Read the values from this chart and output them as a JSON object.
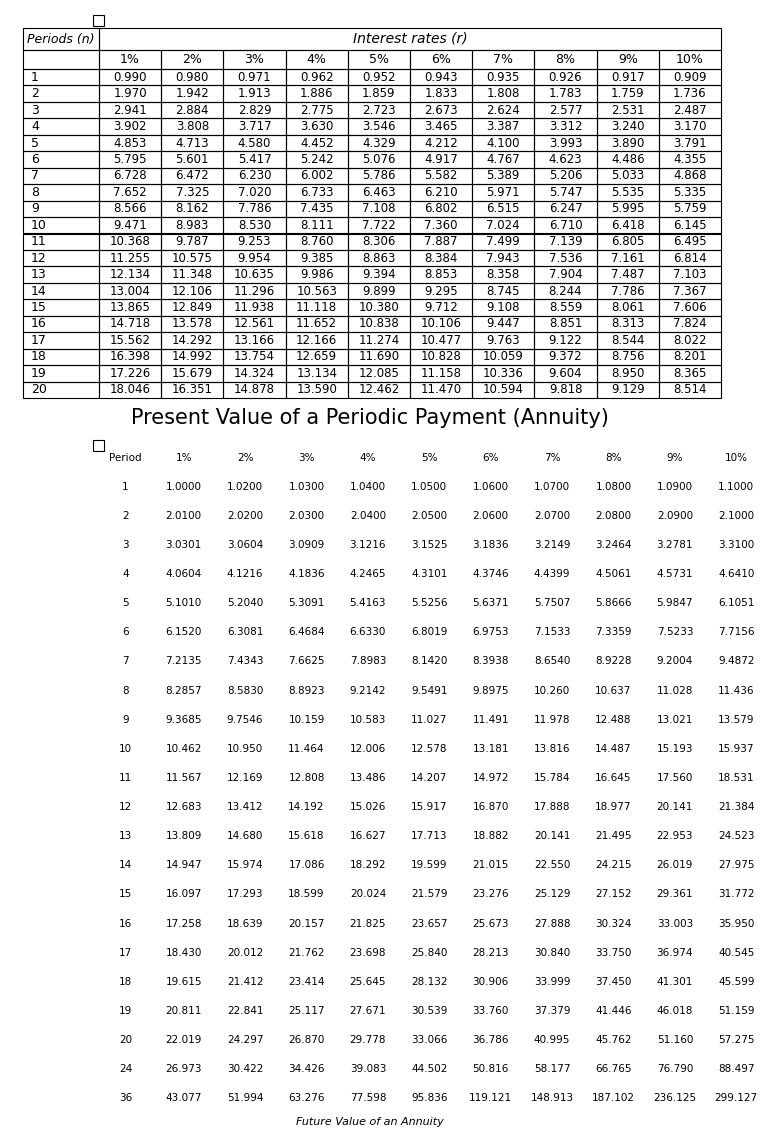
{
  "table1_title_col": "Periods (n)",
  "table1_title_rate": "Interest rates (r)",
  "table1_rates": [
    "1%",
    "2%",
    "3%",
    "4%",
    "5%",
    "6%",
    "7%",
    "8%",
    "9%",
    "10%"
  ],
  "table1_periods": [
    1,
    2,
    3,
    4,
    5,
    6,
    7,
    8,
    9,
    10,
    11,
    12,
    13,
    14,
    15,
    16,
    17,
    18,
    19,
    20
  ],
  "table1_data": [
    [
      0.99,
      0.98,
      0.971,
      0.962,
      0.952,
      0.943,
      0.935,
      0.926,
      0.917,
      0.909
    ],
    [
      1.97,
      1.942,
      1.913,
      1.886,
      1.859,
      1.833,
      1.808,
      1.783,
      1.759,
      1.736
    ],
    [
      2.941,
      2.884,
      2.829,
      2.775,
      2.723,
      2.673,
      2.624,
      2.577,
      2.531,
      2.487
    ],
    [
      3.902,
      3.808,
      3.717,
      3.63,
      3.546,
      3.465,
      3.387,
      3.312,
      3.24,
      3.17
    ],
    [
      4.853,
      4.713,
      4.58,
      4.452,
      4.329,
      4.212,
      4.1,
      3.993,
      3.89,
      3.791
    ],
    [
      5.795,
      5.601,
      5.417,
      5.242,
      5.076,
      4.917,
      4.767,
      4.623,
      4.486,
      4.355
    ],
    [
      6.728,
      6.472,
      6.23,
      6.002,
      5.786,
      5.582,
      5.389,
      5.206,
      5.033,
      4.868
    ],
    [
      7.652,
      7.325,
      7.02,
      6.733,
      6.463,
      6.21,
      5.971,
      5.747,
      5.535,
      5.335
    ],
    [
      8.566,
      8.162,
      7.786,
      7.435,
      7.108,
      6.802,
      6.515,
      6.247,
      5.995,
      5.759
    ],
    [
      9.471,
      8.983,
      8.53,
      8.111,
      7.722,
      7.36,
      7.024,
      6.71,
      6.418,
      6.145
    ],
    [
      10.368,
      9.787,
      9.253,
      8.76,
      8.306,
      7.887,
      7.499,
      7.139,
      6.805,
      6.495
    ],
    [
      11.255,
      10.575,
      9.954,
      9.385,
      8.863,
      8.384,
      7.943,
      7.536,
      7.161,
      6.814
    ],
    [
      12.134,
      11.348,
      10.635,
      9.986,
      9.394,
      8.853,
      8.358,
      7.904,
      7.487,
      7.103
    ],
    [
      13.004,
      12.106,
      11.296,
      10.563,
      9.899,
      9.295,
      8.745,
      8.244,
      7.786,
      7.367
    ],
    [
      13.865,
      12.849,
      11.938,
      11.118,
      10.38,
      9.712,
      9.108,
      8.559,
      8.061,
      7.606
    ],
    [
      14.718,
      13.578,
      12.561,
      11.652,
      10.838,
      10.106,
      9.447,
      8.851,
      8.313,
      7.824
    ],
    [
      15.562,
      14.292,
      13.166,
      12.166,
      11.274,
      10.477,
      9.763,
      9.122,
      8.544,
      8.022
    ],
    [
      16.398,
      14.992,
      13.754,
      12.659,
      11.69,
      10.828,
      10.059,
      9.372,
      8.756,
      8.201
    ],
    [
      17.226,
      15.679,
      14.324,
      13.134,
      12.085,
      11.158,
      10.336,
      9.604,
      8.95,
      8.365
    ],
    [
      18.046,
      16.351,
      14.878,
      13.59,
      12.462,
      11.47,
      10.594,
      9.818,
      9.129,
      8.514
    ]
  ],
  "table2_title": "Present Value of a Periodic Payment (Annuity)",
  "table2_rates": [
    "1%",
    "2%",
    "3%",
    "4%",
    "5%",
    "6%",
    "7%",
    "8%",
    "9%",
    "10%"
  ],
  "table2_periods": [
    1,
    2,
    3,
    4,
    5,
    6,
    7,
    8,
    9,
    10,
    11,
    12,
    13,
    14,
    15,
    16,
    17,
    18,
    19,
    20,
    24,
    36
  ],
  "table2_data": [
    [
      1.0,
      1.02,
      1.03,
      1.04,
      1.05,
      1.06,
      1.07,
      1.08,
      1.09,
      1.1
    ],
    [
      2.01,
      2.02,
      2.03,
      2.04,
      2.05,
      2.06,
      2.07,
      2.08,
      2.09,
      2.1
    ],
    [
      3.0301,
      3.0604,
      3.0909,
      3.1216,
      3.1525,
      3.1836,
      3.2149,
      3.2464,
      3.2781,
      3.31
    ],
    [
      4.0604,
      4.1216,
      4.1836,
      4.2465,
      4.3101,
      4.3746,
      4.4399,
      4.5061,
      4.5731,
      4.641
    ],
    [
      5.101,
      5.204,
      5.3091,
      5.4163,
      5.5256,
      5.6371,
      5.7507,
      5.8666,
      5.9847,
      6.1051
    ],
    [
      6.152,
      6.3081,
      6.4684,
      6.633,
      6.8019,
      6.9753,
      7.1533,
      7.3359,
      7.5233,
      7.7156
    ],
    [
      7.2135,
      7.4343,
      7.6625,
      7.8983,
      8.142,
      8.3938,
      8.654,
      8.9228,
      9.2004,
      9.4872
    ],
    [
      8.2857,
      8.583,
      8.8923,
      9.2142,
      9.5491,
      9.8975,
      10.26,
      10.637,
      11.028,
      11.436
    ],
    [
      9.3685,
      9.7546,
      10.159,
      10.583,
      11.027,
      11.491,
      11.978,
      12.488,
      13.021,
      13.579
    ],
    [
      10.462,
      10.95,
      11.464,
      12.006,
      12.578,
      13.181,
      13.816,
      14.487,
      15.193,
      15.937
    ],
    [
      11.567,
      12.169,
      12.808,
      13.486,
      14.207,
      14.972,
      15.784,
      16.645,
      17.56,
      18.531
    ],
    [
      12.683,
      13.412,
      14.192,
      15.026,
      15.917,
      16.87,
      17.888,
      18.977,
      20.141,
      21.384
    ],
    [
      13.809,
      14.68,
      15.618,
      16.627,
      17.713,
      18.882,
      20.141,
      21.495,
      22.953,
      24.523
    ],
    [
      14.947,
      15.974,
      17.086,
      18.292,
      19.599,
      21.015,
      22.55,
      24.215,
      26.019,
      27.975
    ],
    [
      16.097,
      17.293,
      18.599,
      20.024,
      21.579,
      23.276,
      25.129,
      27.152,
      29.361,
      31.772
    ],
    [
      17.258,
      18.639,
      20.157,
      21.825,
      23.657,
      25.673,
      27.888,
      30.324,
      33.003,
      35.95
    ],
    [
      18.43,
      20.012,
      21.762,
      23.698,
      25.84,
      28.213,
      30.84,
      33.75,
      36.974,
      40.545
    ],
    [
      19.615,
      21.412,
      23.414,
      25.645,
      28.132,
      30.906,
      33.999,
      37.45,
      41.301,
      45.599
    ],
    [
      20.811,
      22.841,
      25.117,
      27.671,
      30.539,
      33.76,
      37.379,
      41.446,
      46.018,
      51.159
    ],
    [
      22.019,
      24.297,
      26.87,
      29.778,
      33.066,
      36.786,
      40.995,
      45.762,
      51.16,
      57.275
    ],
    [
      26.973,
      30.422,
      34.426,
      39.083,
      44.502,
      50.816,
      58.177,
      66.765,
      76.79,
      88.497
    ],
    [
      43.077,
      51.994,
      63.276,
      77.598,
      95.836,
      119.121,
      148.913,
      187.102,
      236.125,
      299.127
    ]
  ],
  "table2_footer": "Future Value of an Annuity",
  "bg_color": "#ffffff",
  "grid_color": "#000000",
  "text_color": "#000000"
}
